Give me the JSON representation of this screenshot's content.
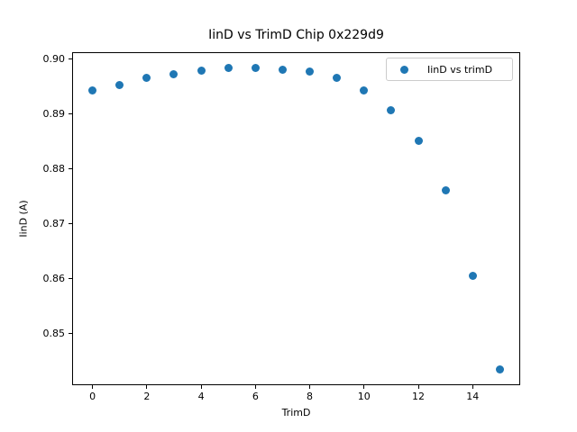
{
  "chart_data": {
    "type": "scatter",
    "title": "IinD vs TrimD Chip 0x229d9",
    "xlabel": "TrimD",
    "ylabel": "IinD (A)",
    "grid": false,
    "legend_position": "upper right",
    "xlim": [
      -0.75,
      15.75
    ],
    "ylim": [
      0.8406,
      0.9013
    ],
    "xticks": [
      0,
      2,
      4,
      6,
      8,
      10,
      12,
      14
    ],
    "yticks": [
      0.85,
      0.86,
      0.87,
      0.88,
      0.89,
      0.9
    ],
    "ytick_labels": [
      "0.85",
      "0.86",
      "0.87",
      "0.88",
      "0.89",
      "0.90"
    ],
    "series": [
      {
        "name": "IinD vs trimD",
        "color": "#1f77b4",
        "x": [
          0,
          1,
          2,
          3,
          4,
          5,
          6,
          7,
          8,
          9,
          10,
          11,
          12,
          13,
          14,
          15
        ],
        "y": [
          0.8944,
          0.8953,
          0.8966,
          0.8973,
          0.8979,
          0.8984,
          0.8985,
          0.8981,
          0.8977,
          0.8967,
          0.8944,
          0.8908,
          0.8852,
          0.8761,
          0.8605,
          0.8434
        ]
      }
    ]
  },
  "colors": {
    "marker": "#1f77b4",
    "axis": "#000000",
    "legend_border": "#cccccc",
    "background": "#ffffff"
  }
}
